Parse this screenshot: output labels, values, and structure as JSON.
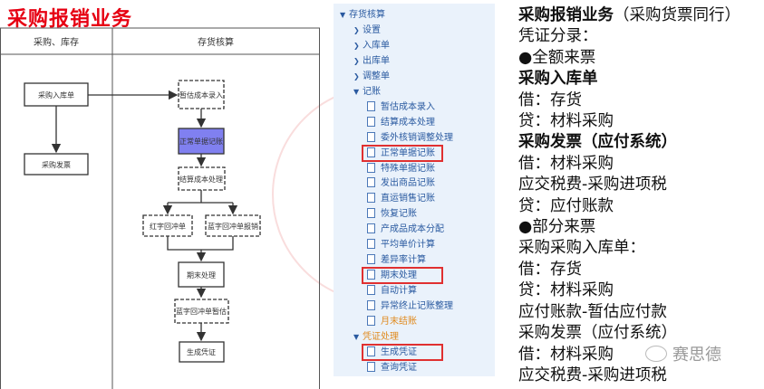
{
  "title": "采购报销业务",
  "diagram": {
    "lanes": [
      "采购、库存",
      "存货核算"
    ],
    "nodes": {
      "cgrkd": "采购入库单",
      "cgfp": "采购发票",
      "zgcb": "暂估成本录入",
      "zcdj": "正常单据记账",
      "jscb": "结算成本处理",
      "hzhcd": "红字回冲单",
      "lzhcdbx": "蓝字回冲单报销",
      "qmcl": "期末处理",
      "lzhcdzg": "蓝字回冲单暂估",
      "scpz": "生成凭证"
    },
    "highlight_color": "#8080f0"
  },
  "menu": {
    "items": [
      {
        "label": "存货核算",
        "level": 1,
        "type": "expanded"
      },
      {
        "label": "设置",
        "level": 2,
        "type": "collapsed"
      },
      {
        "label": "入库单",
        "level": 2,
        "type": "collapsed"
      },
      {
        "label": "出库单",
        "level": 2,
        "type": "collapsed"
      },
      {
        "label": "调整单",
        "level": 2,
        "type": "collapsed"
      },
      {
        "label": "记账",
        "level": 2,
        "type": "expanded"
      },
      {
        "label": "暂估成本录入",
        "level": 3,
        "type": "doc"
      },
      {
        "label": "结算成本处理",
        "level": 3,
        "type": "doc"
      },
      {
        "label": "委外核销调整处理",
        "level": 3,
        "type": "doc"
      },
      {
        "label": "正常单据记账",
        "level": 3,
        "type": "doc",
        "boxed": true
      },
      {
        "label": "特殊单据记账",
        "level": 3,
        "type": "doc"
      },
      {
        "label": "发出商品记账",
        "level": 3,
        "type": "doc"
      },
      {
        "label": "直运销售记账",
        "level": 3,
        "type": "doc"
      },
      {
        "label": "恢复记账",
        "level": 3,
        "type": "doc"
      },
      {
        "label": "产成品成本分配",
        "level": 3,
        "type": "doc"
      },
      {
        "label": "平均单价计算",
        "level": 3,
        "type": "doc"
      },
      {
        "label": "差异率计算",
        "level": 3,
        "type": "doc"
      },
      {
        "label": "期末处理",
        "level": 3,
        "type": "doc",
        "boxed": true
      },
      {
        "label": "自动计算",
        "level": 3,
        "type": "doc"
      },
      {
        "label": "异常终止记账整理",
        "level": 3,
        "type": "doc"
      },
      {
        "label": "月末结账",
        "level": 3,
        "type": "doc",
        "orange": true
      },
      {
        "label": "凭证处理",
        "level": 2,
        "type": "expanded",
        "orange": true
      },
      {
        "label": "生成凭证",
        "level": 3,
        "type": "doc",
        "boxed": true
      },
      {
        "label": "查询凭证",
        "level": 3,
        "type": "doc"
      }
    ]
  },
  "notes": [
    {
      "bold": "采购报销业务",
      "rest": "（采购货票同行）"
    },
    {
      "bold": "",
      "rest": "凭证分录："
    },
    {
      "bold": "",
      "rest": "●全额来票"
    },
    {
      "bold": "采购入库单",
      "rest": ""
    },
    {
      "bold": "",
      "rest": "借：存货"
    },
    {
      "bold": "",
      "rest": "贷：材料采购"
    },
    {
      "bold": "采购发票（应付系统）",
      "rest": ""
    },
    {
      "bold": "",
      "rest": "借：材料采购"
    },
    {
      "bold": "",
      "rest": "应交税费-采购进项税"
    },
    {
      "bold": "",
      "rest": "贷：应付账款"
    },
    {
      "bold": "",
      "rest": "●部分来票"
    },
    {
      "bold": "",
      "rest": "采购采购入库单："
    },
    {
      "bold": "",
      "rest": "借：存货"
    },
    {
      "bold": "",
      "rest": "贷：材料采购"
    },
    {
      "bold": "",
      "rest": "应付账款-暂估应付款"
    },
    {
      "bold": "",
      "rest": "采购发票（应付系统）"
    },
    {
      "bold": "",
      "rest": "借：材料采购"
    },
    {
      "bold": "",
      "rest": "应交税费-采购进项税"
    }
  ],
  "watermark": "赛思德"
}
